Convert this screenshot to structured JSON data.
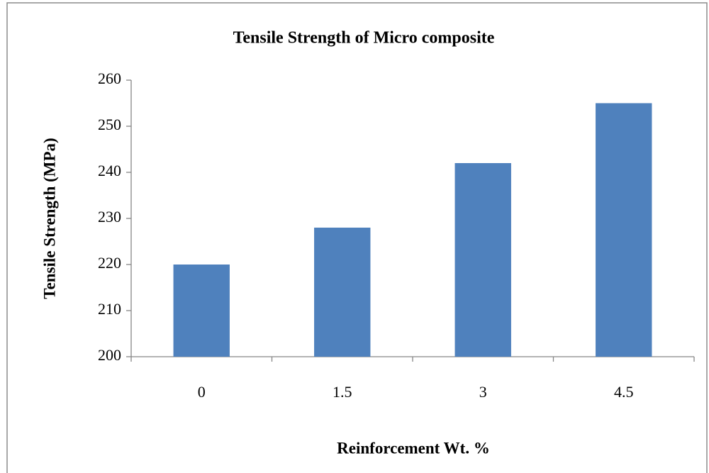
{
  "chart_data": {
    "type": "bar",
    "title": "Tensile Strength of Micro composite",
    "xlabel": "Reinforcement Wt. %",
    "ylabel": "Tensile Strength (MPa)",
    "categories": [
      "0",
      "1.5",
      "3",
      "4.5"
    ],
    "values": [
      220,
      228,
      242,
      255
    ],
    "color": "#4f81bd",
    "ylim": [
      200,
      260
    ],
    "yticks": [
      200,
      210,
      220,
      230,
      240,
      250,
      260
    ],
    "grid": false
  }
}
